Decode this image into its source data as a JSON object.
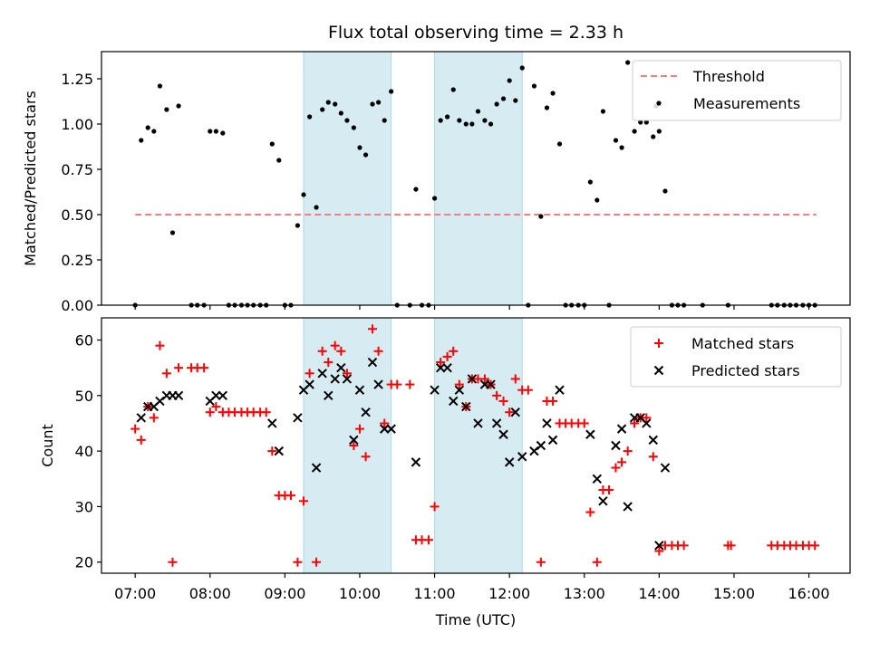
{
  "chart_data": [
    {
      "type": "scatter",
      "title": "Flux total observing time = 2.33 h",
      "ylabel": "Matched/Predicted stars",
      "xlabel": "",
      "x_unit": "hours UTC",
      "ylim": [
        0,
        1.4
      ],
      "yticks": [
        0.0,
        0.25,
        0.5,
        0.75,
        1.0,
        1.25
      ],
      "ytick_labels": [
        "0.00",
        "0.25",
        "0.50",
        "0.75",
        "1.00",
        "1.25"
      ],
      "xlim": [
        6.55,
        16.55
      ],
      "shaded_intervals": [
        [
          9.25,
          10.42
        ],
        [
          11.0,
          12.17
        ]
      ],
      "shade_color": "#add8e6",
      "legend_position": "upper right",
      "threshold": {
        "name": "Threshold",
        "y": 0.5,
        "x_range": [
          7.0,
          16.1
        ],
        "color": "#f08080"
      },
      "series": [
        {
          "name": "Measurements",
          "marker": "dot",
          "color": "#000000",
          "points": [
            [
              7.0,
              0.0
            ],
            [
              7.08,
              0.91
            ],
            [
              7.17,
              0.98
            ],
            [
              7.25,
              0.96
            ],
            [
              7.33,
              1.21
            ],
            [
              7.42,
              1.08
            ],
            [
              7.5,
              0.4
            ],
            [
              7.58,
              1.1
            ],
            [
              7.75,
              0.0
            ],
            [
              7.83,
              0.0
            ],
            [
              7.92,
              0.0
            ],
            [
              8.0,
              0.96
            ],
            [
              8.08,
              0.96
            ],
            [
              8.17,
              0.95
            ],
            [
              8.25,
              0.0
            ],
            [
              8.33,
              0.0
            ],
            [
              8.42,
              0.0
            ],
            [
              8.5,
              0.0
            ],
            [
              8.58,
              0.0
            ],
            [
              8.67,
              0.0
            ],
            [
              8.75,
              0.0
            ],
            [
              8.83,
              0.89
            ],
            [
              8.92,
              0.8
            ],
            [
              9.0,
              0.0
            ],
            [
              9.08,
              0.0
            ],
            [
              9.17,
              0.44
            ],
            [
              9.25,
              0.61
            ],
            [
              9.33,
              1.04
            ],
            [
              9.42,
              0.54
            ],
            [
              9.5,
              1.08
            ],
            [
              9.58,
              1.12
            ],
            [
              9.67,
              1.11
            ],
            [
              9.75,
              1.06
            ],
            [
              9.83,
              1.02
            ],
            [
              9.92,
              0.98
            ],
            [
              10.0,
              0.87
            ],
            [
              10.08,
              0.83
            ],
            [
              10.17,
              1.11
            ],
            [
              10.25,
              1.12
            ],
            [
              10.33,
              1.02
            ],
            [
              10.42,
              1.18
            ],
            [
              10.5,
              0.0
            ],
            [
              10.67,
              0.0
            ],
            [
              10.75,
              0.64
            ],
            [
              10.83,
              0.0
            ],
            [
              10.92,
              0.0
            ],
            [
              11.0,
              0.59
            ],
            [
              11.08,
              1.02
            ],
            [
              11.17,
              1.04
            ],
            [
              11.25,
              1.19
            ],
            [
              11.33,
              1.02
            ],
            [
              11.42,
              1.0
            ],
            [
              11.5,
              1.0
            ],
            [
              11.58,
              1.07
            ],
            [
              11.67,
              1.02
            ],
            [
              11.75,
              1.0
            ],
            [
              11.83,
              1.11
            ],
            [
              11.92,
              1.14
            ],
            [
              12.0,
              1.24
            ],
            [
              12.08,
              1.13
            ],
            [
              12.17,
              1.31
            ],
            [
              12.25,
              0.0
            ],
            [
              12.33,
              1.21
            ],
            [
              12.42,
              0.49
            ],
            [
              12.5,
              1.09
            ],
            [
              12.58,
              1.17
            ],
            [
              12.67,
              0.89
            ],
            [
              12.75,
              0.0
            ],
            [
              12.83,
              0.0
            ],
            [
              12.92,
              0.0
            ],
            [
              13.0,
              0.0
            ],
            [
              13.08,
              0.68
            ],
            [
              13.17,
              0.58
            ],
            [
              13.25,
              1.07
            ],
            [
              13.33,
              0.0
            ],
            [
              13.42,
              0.91
            ],
            [
              13.5,
              0.87
            ],
            [
              13.58,
              1.34
            ],
            [
              13.67,
              0.96
            ],
            [
              13.75,
              1.01
            ],
            [
              13.83,
              1.01
            ],
            [
              13.92,
              0.93
            ],
            [
              13.96,
              1.1
            ],
            [
              14.0,
              0.96
            ],
            [
              14.08,
              0.63
            ],
            [
              14.17,
              0.0
            ],
            [
              14.25,
              0.0
            ],
            [
              14.33,
              0.0
            ],
            [
              14.58,
              0.0
            ],
            [
              14.92,
              0.0
            ],
            [
              15.5,
              0.0
            ],
            [
              15.58,
              0.0
            ],
            [
              15.67,
              0.0
            ],
            [
              15.75,
              0.0
            ],
            [
              15.83,
              0.0
            ],
            [
              15.92,
              0.0
            ],
            [
              16.0,
              0.0
            ],
            [
              16.08,
              0.0
            ]
          ]
        }
      ]
    },
    {
      "type": "scatter",
      "title": "",
      "ylabel": "Count",
      "xlabel": "Time (UTC)",
      "x_unit": "hours UTC",
      "ylim": [
        18,
        64
      ],
      "yticks": [
        20,
        30,
        40,
        50,
        60
      ],
      "ytick_labels": [
        "20",
        "30",
        "40",
        "50",
        "60"
      ],
      "xlim": [
        6.55,
        16.55
      ],
      "xticks": [
        7,
        8,
        9,
        10,
        11,
        12,
        13,
        14,
        15,
        16
      ],
      "xtick_labels": [
        "07:00",
        "08:00",
        "09:00",
        "10:00",
        "11:00",
        "12:00",
        "13:00",
        "14:00",
        "15:00",
        "16:00"
      ],
      "shaded_intervals": [
        [
          9.25,
          10.42
        ],
        [
          11.0,
          12.17
        ]
      ],
      "shade_color": "#add8e6",
      "legend_position": "upper right",
      "series": [
        {
          "name": "Matched stars",
          "marker": "plus",
          "color": "#ff0000",
          "points": [
            [
              7.0,
              44
            ],
            [
              7.08,
              42
            ],
            [
              7.17,
              48
            ],
            [
              7.25,
              46
            ],
            [
              7.33,
              59
            ],
            [
              7.42,
              54
            ],
            [
              7.5,
              20
            ],
            [
              7.58,
              55
            ],
            [
              7.75,
              55
            ],
            [
              7.83,
              55
            ],
            [
              7.92,
              55
            ],
            [
              8.0,
              47
            ],
            [
              8.08,
              48
            ],
            [
              8.17,
              47
            ],
            [
              8.25,
              47
            ],
            [
              8.33,
              47
            ],
            [
              8.42,
              47
            ],
            [
              8.5,
              47
            ],
            [
              8.58,
              47
            ],
            [
              8.67,
              47
            ],
            [
              8.75,
              47
            ],
            [
              8.83,
              40
            ],
            [
              8.92,
              32
            ],
            [
              9.0,
              32
            ],
            [
              9.08,
              32
            ],
            [
              9.17,
              20
            ],
            [
              9.25,
              31
            ],
            [
              9.33,
              54
            ],
            [
              9.42,
              20
            ],
            [
              9.5,
              58
            ],
            [
              9.58,
              56
            ],
            [
              9.67,
              59
            ],
            [
              9.75,
              58
            ],
            [
              9.83,
              54
            ],
            [
              9.92,
              41
            ],
            [
              10.0,
              44
            ],
            [
              10.08,
              39
            ],
            [
              10.17,
              62
            ],
            [
              10.25,
              58
            ],
            [
              10.33,
              45
            ],
            [
              10.42,
              52
            ],
            [
              10.5,
              52
            ],
            [
              10.67,
              52
            ],
            [
              10.75,
              24
            ],
            [
              10.83,
              24
            ],
            [
              10.92,
              24
            ],
            [
              11.0,
              30
            ],
            [
              11.08,
              56
            ],
            [
              11.17,
              57
            ],
            [
              11.25,
              58
            ],
            [
              11.33,
              52
            ],
            [
              11.42,
              48
            ],
            [
              11.5,
              53
            ],
            [
              11.58,
              53
            ],
            [
              11.67,
              53
            ],
            [
              11.75,
              52
            ],
            [
              11.83,
              50
            ],
            [
              11.92,
              49
            ],
            [
              12.0,
              47
            ],
            [
              12.08,
              53
            ],
            [
              12.17,
              51
            ],
            [
              12.25,
              51
            ],
            [
              12.42,
              20
            ],
            [
              12.5,
              49
            ],
            [
              12.58,
              49
            ],
            [
              12.67,
              45
            ],
            [
              12.75,
              45
            ],
            [
              12.83,
              45
            ],
            [
              12.92,
              45
            ],
            [
              13.0,
              45
            ],
            [
              13.08,
              29
            ],
            [
              13.17,
              20
            ],
            [
              13.25,
              33
            ],
            [
              13.33,
              33
            ],
            [
              13.42,
              37
            ],
            [
              13.5,
              38
            ],
            [
              13.58,
              40
            ],
            [
              13.67,
              45
            ],
            [
              13.75,
              46
            ],
            [
              13.83,
              46
            ],
            [
              13.92,
              39
            ],
            [
              14.0,
              22
            ],
            [
              14.08,
              23
            ],
            [
              14.17,
              23
            ],
            [
              14.25,
              23
            ],
            [
              14.33,
              23
            ],
            [
              14.92,
              23
            ],
            [
              14.96,
              23
            ],
            [
              15.5,
              23
            ],
            [
              15.58,
              23
            ],
            [
              15.67,
              23
            ],
            [
              15.75,
              23
            ],
            [
              15.83,
              23
            ],
            [
              15.92,
              23
            ],
            [
              16.0,
              23
            ],
            [
              16.08,
              23
            ]
          ]
        },
        {
          "name": "Predicted stars",
          "marker": "x",
          "color": "#000000",
          "points": [
            [
              7.08,
              46
            ],
            [
              7.17,
              48
            ],
            [
              7.25,
              48
            ],
            [
              7.33,
              49
            ],
            [
              7.42,
              50
            ],
            [
              7.5,
              50
            ],
            [
              7.58,
              50
            ],
            [
              8.0,
              49
            ],
            [
              8.08,
              50
            ],
            [
              8.17,
              50
            ],
            [
              8.83,
              45
            ],
            [
              8.92,
              40
            ],
            [
              9.17,
              46
            ],
            [
              9.25,
              51
            ],
            [
              9.33,
              52
            ],
            [
              9.42,
              37
            ],
            [
              9.5,
              54
            ],
            [
              9.58,
              50
            ],
            [
              9.67,
              53
            ],
            [
              9.75,
              55
            ],
            [
              9.83,
              53
            ],
            [
              9.92,
              42
            ],
            [
              10.0,
              51
            ],
            [
              10.08,
              47
            ],
            [
              10.17,
              56
            ],
            [
              10.25,
              52
            ],
            [
              10.33,
              44
            ],
            [
              10.42,
              44
            ],
            [
              10.75,
              38
            ],
            [
              11.0,
              51
            ],
            [
              11.08,
              55
            ],
            [
              11.17,
              55
            ],
            [
              11.25,
              49
            ],
            [
              11.33,
              51
            ],
            [
              11.42,
              48
            ],
            [
              11.5,
              53
            ],
            [
              11.58,
              45
            ],
            [
              11.67,
              52
            ],
            [
              11.75,
              52
            ],
            [
              11.83,
              45
            ],
            [
              11.92,
              43
            ],
            [
              12.0,
              38
            ],
            [
              12.08,
              47
            ],
            [
              12.17,
              39
            ],
            [
              12.33,
              40
            ],
            [
              12.42,
              41
            ],
            [
              12.5,
              45
            ],
            [
              12.58,
              42
            ],
            [
              12.67,
              51
            ],
            [
              13.08,
              43
            ],
            [
              13.17,
              35
            ],
            [
              13.25,
              31
            ],
            [
              13.42,
              41
            ],
            [
              13.5,
              44
            ],
            [
              13.58,
              30
            ],
            [
              13.67,
              46
            ],
            [
              13.75,
              46
            ],
            [
              13.83,
              45
            ],
            [
              13.92,
              42
            ],
            [
              14.0,
              23
            ],
            [
              14.08,
              37
            ]
          ]
        }
      ]
    }
  ]
}
